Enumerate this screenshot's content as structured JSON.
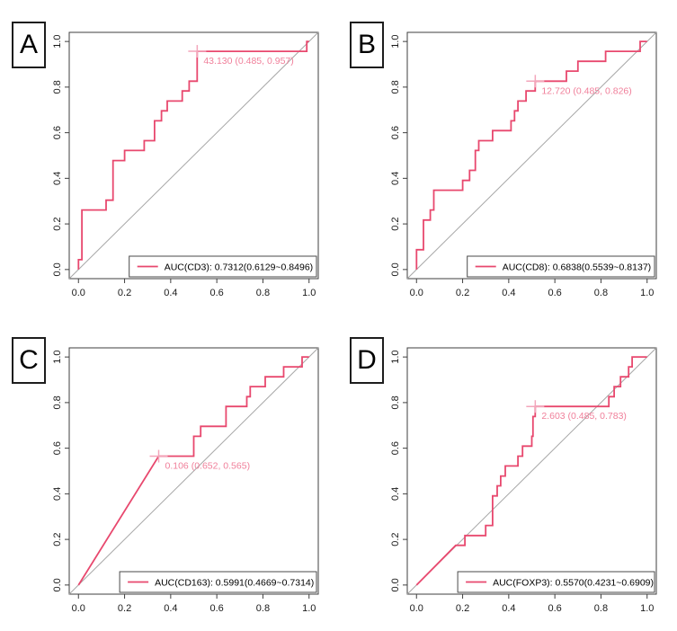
{
  "figure": {
    "background": "#ffffff",
    "curve_color": "#e8486e",
    "annotation_color": "#f07f9a",
    "marker_color": "#f3a6bb",
    "diagonal_color": "#a6a6a6",
    "frame_color": "#3f3f3f",
    "tick_text_color": "#1a1a1a",
    "legend_border_color": "#4a4a4a"
  },
  "chart_data": [
    {
      "type": "line",
      "panel_label": "A",
      "title": "",
      "xlabel": "",
      "ylabel": "",
      "xlim": [
        0,
        1
      ],
      "ylim": [
        0,
        1
      ],
      "x_ticks": [
        0.0,
        0.2,
        0.4,
        0.6,
        0.8,
        1.0
      ],
      "y_ticks": [
        0.0,
        0.2,
        0.4,
        0.6,
        0.8,
        1.0
      ],
      "grid": false,
      "reference_line": "diagonal",
      "legend": {
        "position": "bottom-right",
        "label": "AUC(CD3): 0.7312(0.6129~0.8496)"
      },
      "threshold": {
        "label": "43.130 (0.485, 0.957)",
        "threshold": 43.13,
        "specificity": 0.485,
        "sensitivity": 0.957,
        "x": 0.515,
        "y": 0.957
      },
      "series": [
        {
          "name": "ROC CD3",
          "points": [
            [
              0,
              0
            ],
            [
              0,
              0.043
            ],
            [
              0.015,
              0.043
            ],
            [
              0.015,
              0.261
            ],
            [
              0.12,
              0.261
            ],
            [
              0.12,
              0.304
            ],
            [
              0.15,
              0.304
            ],
            [
              0.15,
              0.478
            ],
            [
              0.2,
              0.478
            ],
            [
              0.2,
              0.522
            ],
            [
              0.285,
              0.522
            ],
            [
              0.285,
              0.565
            ],
            [
              0.33,
              0.565
            ],
            [
              0.33,
              0.652
            ],
            [
              0.36,
              0.652
            ],
            [
              0.36,
              0.696
            ],
            [
              0.385,
              0.696
            ],
            [
              0.385,
              0.739
            ],
            [
              0.45,
              0.739
            ],
            [
              0.45,
              0.783
            ],
            [
              0.48,
              0.783
            ],
            [
              0.48,
              0.826
            ],
            [
              0.515,
              0.826
            ],
            [
              0.515,
              0.957
            ],
            [
              0.99,
              0.957
            ],
            [
              0.99,
              1
            ],
            [
              1,
              1
            ]
          ]
        }
      ]
    },
    {
      "type": "line",
      "panel_label": "B",
      "title": "",
      "xlabel": "",
      "ylabel": "",
      "xlim": [
        0,
        1
      ],
      "ylim": [
        0,
        1
      ],
      "x_ticks": [
        0.0,
        0.2,
        0.4,
        0.6,
        0.8,
        1.0
      ],
      "y_ticks": [
        0.0,
        0.2,
        0.4,
        0.6,
        0.8,
        1.0
      ],
      "grid": false,
      "reference_line": "diagonal",
      "legend": {
        "position": "bottom-right",
        "label": "AUC(CD8): 0.6838(0.5539~0.8137)"
      },
      "threshold": {
        "label": "12.720 (0.485, 0.826)",
        "threshold": 12.72,
        "specificity": 0.485,
        "sensitivity": 0.826,
        "x": 0.515,
        "y": 0.826
      },
      "series": [
        {
          "name": "ROC CD8",
          "points": [
            [
              0,
              0
            ],
            [
              0,
              0.087
            ],
            [
              0.03,
              0.087
            ],
            [
              0.03,
              0.217
            ],
            [
              0.06,
              0.217
            ],
            [
              0.06,
              0.261
            ],
            [
              0.075,
              0.261
            ],
            [
              0.075,
              0.348
            ],
            [
              0.2,
              0.348
            ],
            [
              0.2,
              0.391
            ],
            [
              0.23,
              0.391
            ],
            [
              0.23,
              0.435
            ],
            [
              0.255,
              0.435
            ],
            [
              0.255,
              0.522
            ],
            [
              0.27,
              0.522
            ],
            [
              0.27,
              0.565
            ],
            [
              0.33,
              0.565
            ],
            [
              0.33,
              0.609
            ],
            [
              0.41,
              0.609
            ],
            [
              0.41,
              0.652
            ],
            [
              0.425,
              0.652
            ],
            [
              0.425,
              0.696
            ],
            [
              0.44,
              0.696
            ],
            [
              0.44,
              0.739
            ],
            [
              0.475,
              0.739
            ],
            [
              0.475,
              0.783
            ],
            [
              0.5,
              0.783
            ],
            [
              0.515,
              0.783
            ],
            [
              0.515,
              0.826
            ],
            [
              0.65,
              0.826
            ],
            [
              0.65,
              0.87
            ],
            [
              0.7,
              0.87
            ],
            [
              0.7,
              0.913
            ],
            [
              0.82,
              0.913
            ],
            [
              0.82,
              0.957
            ],
            [
              0.97,
              0.957
            ],
            [
              0.97,
              1
            ],
            [
              1,
              1
            ]
          ]
        }
      ]
    },
    {
      "type": "line",
      "panel_label": "C",
      "title": "",
      "xlabel": "",
      "ylabel": "",
      "xlim": [
        0,
        1
      ],
      "ylim": [
        0,
        1
      ],
      "x_ticks": [
        0.0,
        0.2,
        0.4,
        0.6,
        0.8,
        1.0
      ],
      "y_ticks": [
        0.0,
        0.2,
        0.4,
        0.6,
        0.8,
        1.0
      ],
      "grid": false,
      "reference_line": "diagonal",
      "legend": {
        "position": "bottom-right",
        "label": "AUC(CD163): 0.5991(0.4669~0.7314)"
      },
      "threshold": {
        "label": "0.106 (0.652, 0.565)",
        "threshold": 0.106,
        "specificity": 0.652,
        "sensitivity": 0.565,
        "x": 0.348,
        "y": 0.565
      },
      "series": [
        {
          "name": "ROC CD163",
          "points": [
            [
              0,
              0
            ],
            [
              0.348,
              0.565
            ],
            [
              0.5,
              0.565
            ],
            [
              0.5,
              0.652
            ],
            [
              0.53,
              0.652
            ],
            [
              0.53,
              0.696
            ],
            [
              0.64,
              0.696
            ],
            [
              0.64,
              0.783
            ],
            [
              0.73,
              0.783
            ],
            [
              0.73,
              0.826
            ],
            [
              0.745,
              0.826
            ],
            [
              0.745,
              0.87
            ],
            [
              0.81,
              0.87
            ],
            [
              0.81,
              0.913
            ],
            [
              0.89,
              0.913
            ],
            [
              0.89,
              0.957
            ],
            [
              0.97,
              0.957
            ],
            [
              0.97,
              1
            ],
            [
              1,
              1
            ]
          ]
        }
      ]
    },
    {
      "type": "line",
      "panel_label": "D",
      "title": "",
      "xlabel": "",
      "ylabel": "",
      "xlim": [
        0,
        1
      ],
      "ylim": [
        0,
        1
      ],
      "x_ticks": [
        0.0,
        0.2,
        0.4,
        0.6,
        0.8,
        1.0
      ],
      "y_ticks": [
        0.0,
        0.2,
        0.4,
        0.6,
        0.8,
        1.0
      ],
      "grid": false,
      "reference_line": "diagonal",
      "legend": {
        "position": "bottom-right",
        "label": "AUC(FOXP3): 0.5570(0.4231~0.6909)"
      },
      "threshold": {
        "label": "2.603 (0.485, 0.783)",
        "threshold": 2.603,
        "specificity": 0.485,
        "sensitivity": 0.783,
        "x": 0.515,
        "y": 0.783
      },
      "series": [
        {
          "name": "ROC FOXP3",
          "points": [
            [
              0,
              0
            ],
            [
              0.17,
              0.174
            ],
            [
              0.21,
              0.174
            ],
            [
              0.21,
              0.217
            ],
            [
              0.3,
              0.217
            ],
            [
              0.3,
              0.261
            ],
            [
              0.33,
              0.261
            ],
            [
              0.33,
              0.391
            ],
            [
              0.35,
              0.391
            ],
            [
              0.35,
              0.435
            ],
            [
              0.365,
              0.435
            ],
            [
              0.365,
              0.478
            ],
            [
              0.385,
              0.478
            ],
            [
              0.385,
              0.522
            ],
            [
              0.44,
              0.522
            ],
            [
              0.44,
              0.565
            ],
            [
              0.46,
              0.565
            ],
            [
              0.46,
              0.609
            ],
            [
              0.5,
              0.609
            ],
            [
              0.5,
              0.652
            ],
            [
              0.505,
              0.652
            ],
            [
              0.505,
              0.739
            ],
            [
              0.515,
              0.739
            ],
            [
              0.515,
              0.783
            ],
            [
              0.834,
              0.783
            ],
            [
              0.834,
              0.826
            ],
            [
              0.857,
              0.826
            ],
            [
              0.857,
              0.87
            ],
            [
              0.885,
              0.87
            ],
            [
              0.885,
              0.913
            ],
            [
              0.92,
              0.913
            ],
            [
              0.92,
              0.957
            ],
            [
              0.935,
              0.957
            ],
            [
              0.935,
              1
            ],
            [
              1,
              1
            ]
          ]
        }
      ]
    }
  ]
}
